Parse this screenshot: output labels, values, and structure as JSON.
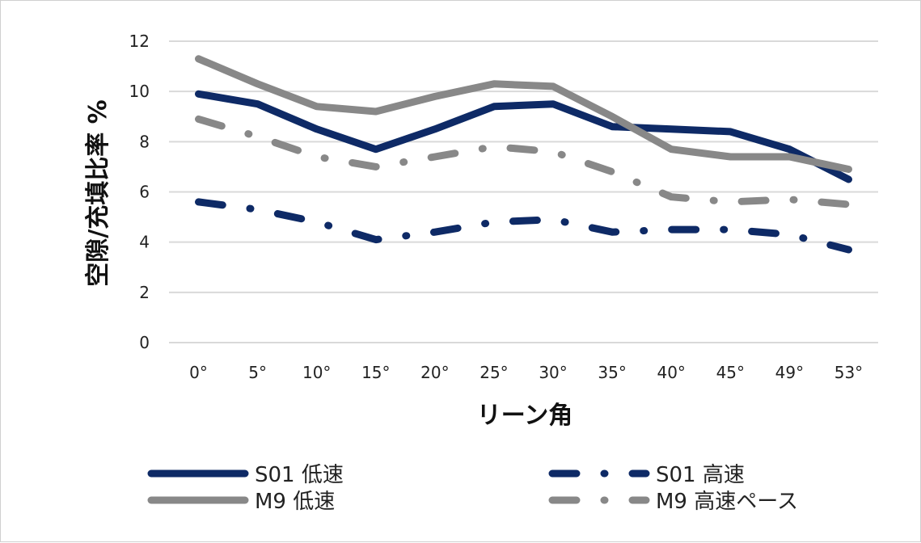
{
  "chart_data": {
    "type": "line",
    "title": "",
    "xlabel": "リーン角",
    "ylabel": "空隙/充填比率 %",
    "ylim": [
      0,
      12
    ],
    "yticks": [
      0,
      2,
      4,
      6,
      8,
      10,
      12
    ],
    "grid": true,
    "legend_position": "bottom",
    "categories": [
      "0°",
      "5°",
      "10°",
      "15°",
      "20°",
      "25°",
      "30°",
      "35°",
      "40°",
      "45°",
      "49°",
      "53°"
    ],
    "series": [
      {
        "name": "S01 低速",
        "color": "#0e2a66",
        "dash": "solid",
        "values": [
          9.9,
          9.5,
          8.5,
          7.7,
          8.5,
          9.4,
          9.5,
          8.6,
          8.5,
          8.4,
          7.7,
          6.5
        ]
      },
      {
        "name": "S01 高速",
        "color": "#0e2a66",
        "dash": "dash-dot",
        "values": [
          5.6,
          5.3,
          4.8,
          4.1,
          4.4,
          4.8,
          4.9,
          4.4,
          4.5,
          4.5,
          4.3,
          3.7
        ]
      },
      {
        "name": "M9 低速",
        "color": "#888888",
        "dash": "solid",
        "values": [
          11.3,
          10.3,
          9.4,
          9.2,
          9.8,
          10.3,
          10.2,
          9.0,
          7.7,
          7.4,
          7.4,
          6.9
        ]
      },
      {
        "name": "M9 高速ペース",
        "color": "#888888",
        "dash": "dash-dot",
        "values": [
          8.9,
          8.2,
          7.4,
          7.0,
          7.4,
          7.8,
          7.6,
          6.8,
          5.8,
          5.6,
          5.7,
          5.5
        ]
      }
    ]
  }
}
